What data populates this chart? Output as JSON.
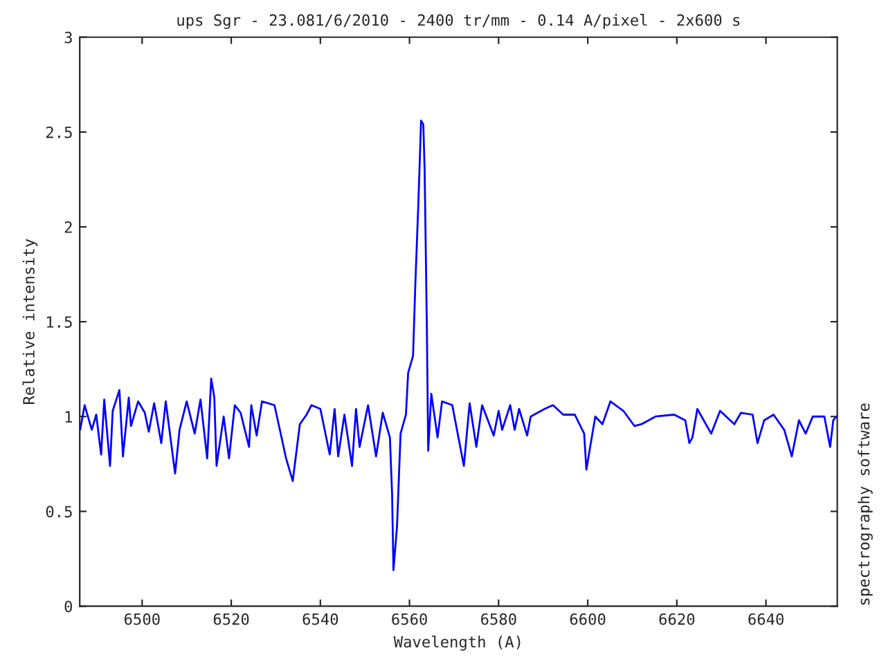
{
  "chart_data": {
    "type": "line",
    "title": "ups Sgr - 23.081/6/2010 - 2400 tr/mm - 0.14 A/pixel - 2x600 s",
    "xlabel": "Wavelength (A)",
    "ylabel": "Relative intensity",
    "annotations": [
      "spectrography software"
    ],
    "xlim": [
      6486,
      6656
    ],
    "ylim": [
      0,
      3
    ],
    "xticks": [
      6500,
      6520,
      6540,
      6560,
      6580,
      6600,
      6620,
      6640
    ],
    "yticks": [
      0,
      {
        "value": 0.5,
        "label": "0.5"
      },
      1,
      {
        "value": 1.5,
        "label": "1.5"
      },
      2,
      {
        "value": 2.5,
        "label": "2.5"
      },
      3
    ],
    "grid": false,
    "marker": "none",
    "line_style": "solid",
    "series": [
      {
        "color": "#0000ff",
        "x": [
          6486.1,
          6487.1,
          6488.7,
          6489.7,
          6490.8,
          6491.5,
          6492.8,
          6493.4,
          6494.9,
          6495.7,
          6497.0,
          6497.5,
          6499.1,
          6500.6,
          6501.5,
          6502.7,
          6504.3,
          6505.3,
          6507.4,
          6508.4,
          6510.0,
          6511.8,
          6513.1,
          6514.6,
          6515.5,
          6516.2,
          6516.7,
          6518.3,
          6519.5,
          6520.8,
          6522.1,
          6524.0,
          6524.5,
          6525.7,
          6526.9,
          6529.7,
          6532.3,
          6533.8,
          6535.4,
          6536.9,
          6538.0,
          6540.0,
          6542.1,
          6543.2,
          6544.0,
          6545.4,
          6547.1,
          6548.0,
          6548.8,
          6550.7,
          6552.5,
          6554.0,
          6555.6,
          6556.1,
          6556.4,
          6557.2,
          6558.0,
          6559.2,
          6559.7,
          6560.8,
          6561.3,
          6562.0,
          6562.6,
          6563.1,
          6563.4,
          6563.9,
          6564.2,
          6564.9,
          6566.3,
          6567.3,
          6569.6,
          6572.2,
          6573.5,
          6575.0,
          6576.3,
          6578.9,
          6580.0,
          6580.8,
          6582.6,
          6583.6,
          6584.6,
          6586.4,
          6587.2,
          6590.3,
          6592.2,
          6594.5,
          6597.1,
          6599.2,
          6599.7,
          6600.9,
          6601.7,
          6603.3,
          6605.1,
          6608.0,
          6610.5,
          6612.1,
          6615.2,
          6619.4,
          6621.9,
          6622.8,
          6623.5,
          6624.6,
          6627.7,
          6629.7,
          6632.9,
          6634.4,
          6637.0,
          6638.1,
          6639.6,
          6641.7,
          6644.1,
          6645.8,
          6647.4,
          6648.9,
          6650.5,
          6653.1,
          6654.4,
          6655.1,
          6655.8
        ],
        "values": [
          0.93,
          1.06,
          0.93,
          1.01,
          0.8,
          1.09,
          0.74,
          1.03,
          1.14,
          0.79,
          1.1,
          0.95,
          1.08,
          1.02,
          0.92,
          1.07,
          0.86,
          1.08,
          0.7,
          0.93,
          1.08,
          0.91,
          1.09,
          0.78,
          1.2,
          1.1,
          0.74,
          1.0,
          0.78,
          1.06,
          1.02,
          0.84,
          1.06,
          0.9,
          1.08,
          1.06,
          0.78,
          0.66,
          0.96,
          1.01,
          1.06,
          1.04,
          0.8,
          1.04,
          0.79,
          1.01,
          0.74,
          1.04,
          0.84,
          1.06,
          0.79,
          1.02,
          0.89,
          0.59,
          0.19,
          0.42,
          0.91,
          1.01,
          1.23,
          1.32,
          1.69,
          2.13,
          2.56,
          2.54,
          2.3,
          1.47,
          0.82,
          1.12,
          0.89,
          1.08,
          1.06,
          0.74,
          1.07,
          0.84,
          1.06,
          0.9,
          1.03,
          0.93,
          1.06,
          0.93,
          1.04,
          0.9,
          1.0,
          1.04,
          1.06,
          1.01,
          1.01,
          0.91,
          0.72,
          0.89,
          1.0,
          0.96,
          1.08,
          1.03,
          0.95,
          0.96,
          1.0,
          1.01,
          0.98,
          0.86,
          0.89,
          1.04,
          0.91,
          1.03,
          0.96,
          1.02,
          1.01,
          0.86,
          0.98,
          1.01,
          0.93,
          0.79,
          0.98,
          0.91,
          1.0,
          1.0,
          0.84,
          0.98,
          1.0
        ]
      }
    ]
  }
}
